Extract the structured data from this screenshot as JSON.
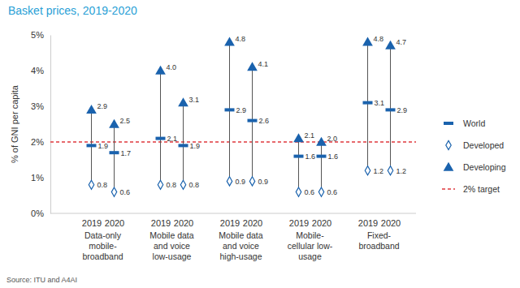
{
  "chart_data": {
    "type": "dot_range",
    "title": "Basket prices, 2019-2020",
    "y_label": "% of GNI per capita",
    "source": "Source: ITU and A4AI",
    "categories": [
      "2019",
      "2020",
      "2019",
      "2020",
      "2019",
      "2020",
      "2019",
      "2020",
      "2019",
      "2020"
    ],
    "groups": [
      [
        "Data-only",
        "mobile-",
        "broadband"
      ],
      [
        "Mobile data",
        "and voice",
        "low-usage"
      ],
      [
        "Mobile data",
        "and voice",
        "high-usage"
      ],
      [
        "Mobile-",
        "cellular low-",
        "usage"
      ],
      [
        "Fixed-",
        "broadband"
      ]
    ],
    "ylim": [
      0,
      5
    ],
    "yticks": [
      {
        "value": 0,
        "label": "0%"
      },
      {
        "value": 1,
        "label": "1%"
      },
      {
        "value": 2,
        "label": "2%"
      },
      {
        "value": 3,
        "label": "3%"
      },
      {
        "value": 4,
        "label": "4%"
      },
      {
        "value": 5,
        "label": "5%"
      }
    ],
    "grid": false,
    "data_labels": true,
    "legend": "right",
    "series": [
      {
        "name": "World",
        "color": "#1a62ad",
        "marker": "dash",
        "values": [
          1.9,
          1.7,
          2.1,
          1.9,
          2.9,
          2.6,
          1.6,
          1.6,
          3.1,
          2.9
        ],
        "value_labels": [
          "1.9",
          "1.7",
          "2.1",
          "1.9",
          "2.9",
          "2.6",
          "1.6",
          "1.6",
          "3.1",
          "2.9"
        ]
      },
      {
        "name": "Developed",
        "color": "#1a62ad",
        "marker": "diamond",
        "values": [
          0.8,
          0.6,
          0.8,
          0.8,
          0.9,
          0.9,
          0.6,
          0.6,
          1.2,
          1.2
        ],
        "value_labels": [
          "0.8",
          "0.6",
          "0.8",
          "0.8",
          "0.9",
          "0.9",
          "0.6",
          "0.6",
          "1.2",
          "1.2"
        ]
      },
      {
        "name": "Developing",
        "color": "#1a62ad",
        "marker": "triangle",
        "values": [
          2.9,
          2.5,
          4.0,
          3.1,
          4.8,
          4.1,
          2.1,
          2.0,
          4.8,
          4.7
        ],
        "value_labels": [
          "2.9",
          "2.5",
          "4.0",
          "3.1",
          "4.8",
          "4.1",
          "2.1",
          "2.0",
          "4.8",
          "4.7"
        ]
      }
    ],
    "reference_lines": [
      {
        "name": "2% target",
        "value": 2,
        "color": "#e0393e",
        "line_style": "dashed"
      }
    ]
  }
}
